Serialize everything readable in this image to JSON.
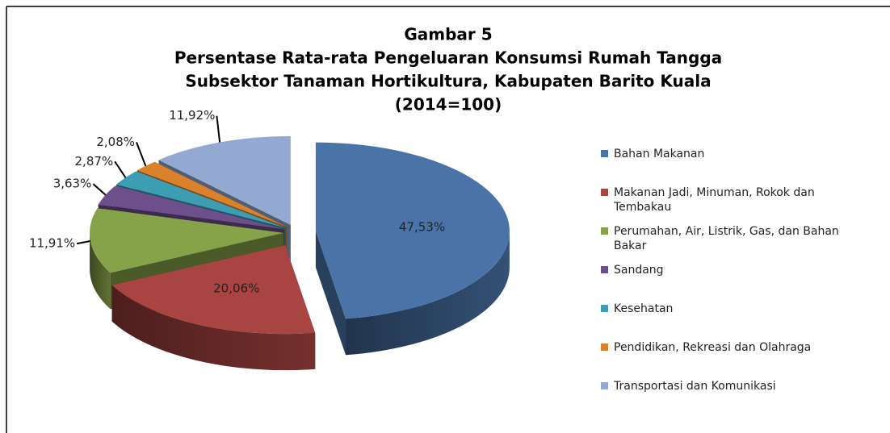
{
  "chart_data": {
    "type": "pie",
    "title": [
      "Gambar 5",
      "Persentase Rata-rata Pengeluaran Konsumsi  Rumah Tangga",
      "Subsektor Tanaman  Hortikultura, Kabupaten Barito Kuala",
      "(2014=100)"
    ],
    "categories": [
      "Bahan Makanan",
      "Makanan Jadi, Minuman, Rokok dan Tembakau",
      "Perumahan, Air, Listrik, Gas, dan Bahan Bakar",
      "Sandang",
      "Kesehatan",
      "Pendidikan, Rekreasi dan Olahraga",
      "Transportasi dan Komunikasi"
    ],
    "values": [
      47.53,
      20.06,
      11.91,
      3.63,
      2.87,
      2.08,
      11.92
    ],
    "value_labels": [
      "47,53%",
      "20,06%",
      "11,91%",
      "3,63%",
      "2,87%",
      "2,08%",
      "11,92%"
    ],
    "colors": [
      "#4a74a8",
      "#a84442",
      "#87a34a",
      "#6d4f8c",
      "#3d9db3",
      "#d9822b",
      "#93a9d1"
    ],
    "legend": "right"
  }
}
